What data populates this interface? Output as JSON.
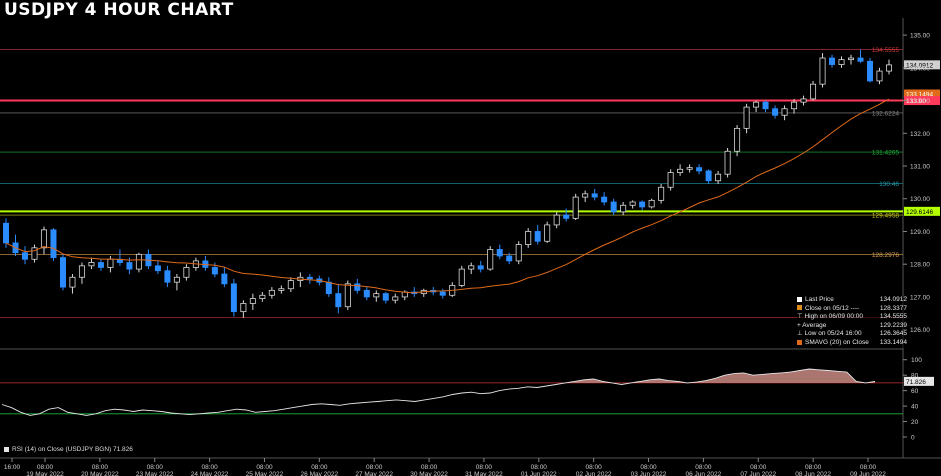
{
  "title": "USDJPY 4 HOUR CHART",
  "chart_data": {
    "type": "candlestick",
    "price_axis": {
      "min": 125.5,
      "max": 135.4,
      "ticks": [
        "135.00",
        "134.00",
        "133.00",
        "132.00",
        "131.00",
        "130.00",
        "129.00",
        "128.00",
        "127.00",
        "126.00"
      ]
    },
    "rsi_axis": {
      "min": 0,
      "max": 110,
      "ticks": [
        "100",
        "80",
        "60",
        "40",
        "20",
        "0"
      ]
    },
    "x_labels": [
      {
        "top": "16:00",
        "bottom": ""
      },
      {
        "top": "08:00",
        "bottom": "19 May 2022"
      },
      {
        "top": "08:00",
        "bottom": "20 May 2022"
      },
      {
        "top": "08:00",
        "bottom": "23 May 2022"
      },
      {
        "top": "08:00",
        "bottom": "24 May 2022"
      },
      {
        "top": "08:00",
        "bottom": "25 May 2022"
      },
      {
        "top": "08:00",
        "bottom": "26 May 2022"
      },
      {
        "top": "08:00",
        "bottom": "27 May 2022"
      },
      {
        "top": "08:00",
        "bottom": "30 May 2022"
      },
      {
        "top": "08:00",
        "bottom": "31 May 2022"
      },
      {
        "top": "08:00",
        "bottom": "01 Jun 2022"
      },
      {
        "top": "08:00",
        "bottom": "02 Jun 2022"
      },
      {
        "top": "08:00",
        "bottom": "03 Jun 2022"
      },
      {
        "top": "08:00",
        "bottom": "06 Jun 2022"
      },
      {
        "top": "08:00",
        "bottom": "07 Jun 2022"
      },
      {
        "top": "08:00",
        "bottom": "08 Jun 2022"
      },
      {
        "top": "08:00",
        "bottom": "09 Jun 2022"
      }
    ],
    "candles": [
      [
        129.25,
        129.4,
        128.5,
        128.65
      ],
      [
        128.65,
        128.9,
        128.25,
        128.35
      ],
      [
        128.35,
        128.55,
        128.0,
        128.15
      ],
      [
        128.15,
        128.6,
        128.05,
        128.5
      ],
      [
        128.5,
        129.15,
        128.3,
        129.05
      ],
      [
        129.05,
        129.1,
        128.1,
        128.2
      ],
      [
        128.2,
        128.3,
        127.2,
        127.3
      ],
      [
        127.3,
        127.7,
        127.1,
        127.6
      ],
      [
        127.6,
        128.05,
        127.4,
        127.95
      ],
      [
        127.95,
        128.2,
        127.85,
        128.05
      ],
      [
        128.05,
        128.15,
        127.8,
        127.9
      ],
      [
        127.9,
        128.25,
        127.75,
        128.15
      ],
      [
        128.15,
        128.45,
        127.95,
        128.05
      ],
      [
        128.05,
        128.2,
        127.7,
        127.85
      ],
      [
        127.85,
        128.35,
        127.75,
        128.3
      ],
      [
        128.3,
        128.45,
        127.85,
        127.95
      ],
      [
        127.95,
        128.1,
        127.7,
        127.8
      ],
      [
        127.8,
        127.95,
        127.3,
        127.45
      ],
      [
        127.45,
        127.7,
        127.2,
        127.6
      ],
      [
        127.6,
        128.0,
        127.5,
        127.9
      ],
      [
        127.9,
        128.2,
        127.8,
        128.1
      ],
      [
        128.1,
        128.25,
        127.8,
        127.9
      ],
      [
        127.9,
        128.05,
        127.6,
        127.7
      ],
      [
        127.7,
        127.9,
        127.3,
        127.4
      ],
      [
        127.4,
        127.55,
        126.4,
        126.55
      ],
      [
        126.55,
        126.9,
        126.36,
        126.8
      ],
      [
        126.8,
        127.1,
        126.6,
        126.95
      ],
      [
        126.95,
        127.15,
        126.85,
        127.05
      ],
      [
        127.05,
        127.3,
        126.95,
        127.2
      ],
      [
        127.2,
        127.35,
        127.1,
        127.25
      ],
      [
        127.25,
        127.6,
        127.15,
        127.5
      ],
      [
        127.5,
        127.75,
        127.3,
        127.6
      ],
      [
        127.6,
        127.7,
        127.4,
        127.55
      ],
      [
        127.55,
        127.65,
        127.35,
        127.45
      ],
      [
        127.45,
        127.6,
        127.0,
        127.1
      ],
      [
        127.1,
        127.4,
        126.5,
        126.7
      ],
      [
        126.7,
        127.5,
        126.6,
        127.4
      ],
      [
        127.4,
        127.55,
        127.1,
        127.2
      ],
      [
        127.2,
        127.3,
        126.9,
        127.0
      ],
      [
        127.0,
        127.2,
        126.85,
        127.1
      ],
      [
        127.1,
        127.15,
        126.8,
        126.9
      ],
      [
        126.9,
        127.1,
        126.8,
        127.0
      ],
      [
        127.0,
        127.2,
        126.9,
        127.15
      ],
      [
        127.15,
        127.3,
        127.0,
        127.1
      ],
      [
        127.1,
        127.25,
        127.0,
        127.2
      ],
      [
        127.2,
        127.3,
        127.05,
        127.15
      ],
      [
        127.15,
        127.25,
        126.95,
        127.05
      ],
      [
        127.05,
        127.45,
        127.0,
        127.35
      ],
      [
        127.35,
        127.95,
        127.3,
        127.85
      ],
      [
        127.85,
        128.05,
        127.7,
        127.95
      ],
      [
        127.95,
        128.1,
        127.75,
        127.85
      ],
      [
        127.85,
        128.55,
        127.8,
        128.45
      ],
      [
        128.45,
        128.6,
        128.15,
        128.25
      ],
      [
        128.25,
        128.35,
        128.0,
        128.1
      ],
      [
        128.1,
        128.7,
        128.0,
        128.6
      ],
      [
        128.6,
        129.1,
        128.5,
        129.0
      ],
      [
        129.0,
        129.2,
        128.6,
        128.7
      ],
      [
        128.7,
        129.3,
        128.65,
        129.2
      ],
      [
        129.2,
        129.6,
        129.1,
        129.5
      ],
      [
        129.5,
        129.7,
        129.3,
        129.4
      ],
      [
        129.4,
        130.15,
        129.35,
        130.05
      ],
      [
        130.05,
        130.25,
        129.9,
        130.15
      ],
      [
        130.15,
        130.3,
        129.95,
        130.05
      ],
      [
        130.05,
        130.2,
        129.8,
        129.9
      ],
      [
        129.9,
        130.0,
        129.5,
        129.6
      ],
      [
        129.6,
        129.9,
        129.5,
        129.8
      ],
      [
        129.8,
        129.95,
        129.7,
        129.9
      ],
      [
        129.9,
        129.95,
        129.65,
        129.75
      ],
      [
        129.75,
        130.0,
        129.7,
        129.95
      ],
      [
        129.95,
        130.45,
        129.85,
        130.35
      ],
      [
        130.35,
        130.9,
        130.25,
        130.8
      ],
      [
        130.8,
        131.05,
        130.7,
        130.9
      ],
      [
        130.9,
        131.05,
        130.8,
        130.95
      ],
      [
        130.95,
        131.05,
        130.75,
        130.85
      ],
      [
        130.85,
        130.9,
        130.45,
        130.55
      ],
      [
        130.55,
        130.85,
        130.45,
        130.75
      ],
      [
        130.75,
        131.55,
        130.65,
        131.45
      ],
      [
        131.45,
        132.25,
        131.3,
        132.15
      ],
      [
        132.15,
        132.9,
        132.0,
        132.8
      ],
      [
        132.8,
        133.0,
        132.65,
        132.95
      ],
      [
        132.95,
        133.0,
        132.65,
        132.75
      ],
      [
        132.75,
        132.85,
        132.45,
        132.55
      ],
      [
        132.55,
        132.85,
        132.4,
        132.75
      ],
      [
        132.75,
        133.05,
        132.6,
        132.95
      ],
      [
        132.95,
        133.15,
        132.85,
        133.05
      ],
      [
        133.05,
        133.6,
        133.0,
        133.5
      ],
      [
        133.5,
        134.45,
        133.4,
        134.3
      ],
      [
        134.3,
        134.4,
        134.0,
        134.1
      ],
      [
        134.1,
        134.35,
        134.0,
        134.25
      ],
      [
        134.25,
        134.4,
        134.1,
        134.3
      ],
      [
        134.3,
        134.56,
        134.15,
        134.2
      ],
      [
        134.2,
        134.3,
        133.55,
        133.6
      ],
      [
        133.6,
        134.0,
        133.5,
        133.9
      ],
      [
        133.9,
        134.25,
        133.8,
        134.09
      ]
    ],
    "sma_label": "SMAVG (20)  on Close",
    "hlines": [
      {
        "value": 134.5555,
        "label": "134.5555",
        "color": "#d63a3a",
        "width": 0.6,
        "box": false
      },
      {
        "value": 134.0912,
        "label": "134.0912",
        "color": "#d0d0d0",
        "width": 0,
        "box": true
      },
      {
        "value": 133.2,
        "label": "133.1494",
        "color": "#e06a1a",
        "width": 0,
        "box": true
      },
      {
        "value": 133.0,
        "label": "133.00",
        "color": "#ff3a5a",
        "width": 2,
        "box": true
      },
      {
        "value": 132.6224,
        "label": "132.6224",
        "color": "#8a8a8a",
        "width": 0.6,
        "box": false
      },
      {
        "value": 131.4265,
        "label": "131.4265",
        "color": "#1eb43c",
        "width": 0.6,
        "box": false
      },
      {
        "value": 130.46,
        "label": "130.46",
        "color": "#1e9aaa",
        "width": 0.6,
        "box": false
      },
      {
        "value": 129.6146,
        "label": "129.6146",
        "color": "#b4ff00",
        "width": 2,
        "box": true
      },
      {
        "value": 129.5,
        "label": "129.4958",
        "color": "#c8c81e",
        "width": 0.6,
        "box": false
      },
      {
        "value": 128.2976,
        "label": "128.2976",
        "color": "#d8a050",
        "width": 0.6,
        "box": false
      },
      {
        "value": 126.3645,
        "label": "",
        "color": "#c83232",
        "width": 0.6,
        "box": false
      }
    ],
    "rsi": [
      42,
      38,
      32,
      28,
      30,
      36,
      38,
      32,
      30,
      28,
      30,
      34,
      36,
      35,
      33,
      35,
      34,
      33,
      31,
      30,
      29,
      30,
      31,
      32,
      34,
      36,
      35,
      32,
      33,
      34,
      36,
      38,
      40,
      42,
      43,
      42,
      41,
      43,
      44,
      45,
      46,
      47,
      48,
      47,
      46,
      48,
      50,
      52,
      55,
      57,
      58,
      56,
      57,
      60,
      62,
      63,
      65,
      64,
      66,
      68,
      70,
      72,
      74,
      75,
      72,
      70,
      68,
      70,
      72,
      74,
      75,
      73,
      72,
      70,
      71,
      73,
      76,
      80,
      82,
      83,
      80,
      81,
      82,
      83,
      84,
      86,
      88,
      87,
      86,
      85,
      84,
      72,
      70,
      72
    ],
    "rsi_thresholds": [
      70,
      30
    ],
    "rsi_value_label": "71.826"
  },
  "legend": {
    "rows": [
      {
        "label": "Last Price",
        "value": "134.0912",
        "color": "#ffffff"
      },
      {
        "label": "Close on 05/12 ----",
        "value": "128.3377",
        "color": "#e08a1a"
      },
      {
        "label": "High on 06/09 00:00",
        "value": "134.5555",
        "color": "",
        "icon": "⊤"
      },
      {
        "label": "Average",
        "value": "129.2239",
        "color": "",
        "icon": "+"
      },
      {
        "label": "Low on 05/24 16:00",
        "value": "126.3645",
        "color": "",
        "icon": "⊥"
      },
      {
        "label": "SMAVG (20)  on Close",
        "value": "133.1494",
        "color": "#e06a1a"
      }
    ]
  },
  "rsi_label": "RSI (14)  on Close (USDJPY BGN) 71.826"
}
